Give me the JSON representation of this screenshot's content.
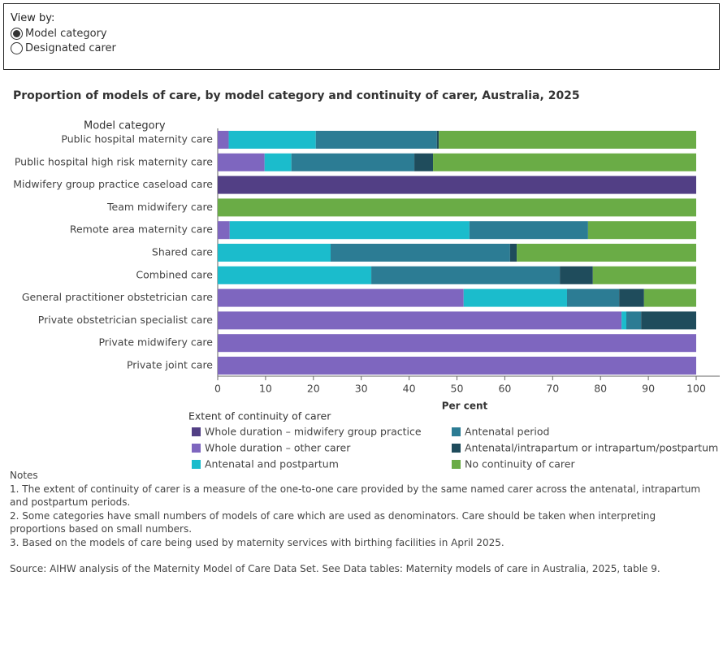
{
  "view_control": {
    "label": "View by:",
    "options": [
      {
        "label": "Model category",
        "selected": true
      },
      {
        "label": "Designated carer",
        "selected": false
      }
    ]
  },
  "chart_data": {
    "type": "bar",
    "orientation": "horizontal",
    "stacked": true,
    "title": "Proportion of models of care, by model category and continuity of carer, Australia, 2025",
    "y_axis_label": "Model category",
    "x_axis_label": "Per cent",
    "legend_title": "Extent of continuity of carer",
    "categories": [
      "Public hospital maternity care",
      "Public hospital high risk maternity care",
      "Midwifery group practice caseload care",
      "Team midwifery care",
      "Remote area maternity care",
      "Shared care",
      "Combined care",
      "General practitioner obstetrician care",
      "Private obstetrician specialist care",
      "Private midwifery care",
      "Private joint care"
    ],
    "series": [
      {
        "name": "Whole duration – midwifery group practice",
        "color": "#523f85",
        "values": [
          0,
          0,
          100,
          0,
          0,
          0,
          0,
          0,
          0,
          0,
          0
        ]
      },
      {
        "name": "Whole duration – other carer",
        "color": "#7e66bf",
        "values": [
          2.3,
          9.8,
          0,
          0,
          2.5,
          0,
          0,
          51.4,
          84.4,
          100,
          100
        ]
      },
      {
        "name": "Antenatal and postpartum",
        "color": "#1bbccc",
        "values": [
          18.2,
          5.6,
          0,
          0,
          50.1,
          23.6,
          32.1,
          21.6,
          1.0,
          0,
          0
        ]
      },
      {
        "name": "Antenatal period",
        "color": "#2c7c94",
        "values": [
          25.3,
          25.7,
          0,
          0,
          24.8,
          37.5,
          39.4,
          10.9,
          3.1,
          0,
          0
        ]
      },
      {
        "name": "Antenatal/intrapartum or intrapartum/postpartum",
        "color": "#1f4c5c",
        "values": [
          0.4,
          3.9,
          0,
          0,
          0,
          1.4,
          6.9,
          5.2,
          11.5,
          0,
          0
        ]
      },
      {
        "name": "No continuity of carer",
        "color": "#6aac46",
        "values": [
          53.8,
          55.0,
          0,
          100,
          22.6,
          37.5,
          21.6,
          10.9,
          0,
          0,
          0
        ]
      }
    ],
    "xlim": [
      0,
      100
    ],
    "xticks": [
      0,
      10,
      20,
      30,
      40,
      50,
      60,
      70,
      80,
      90,
      100
    ],
    "grid": false
  },
  "notes": {
    "heading": "Notes",
    "items": [
      "1. The extent of continuity of carer is a measure of the one-to-one care provided by the same named carer across the antenatal, intrapartum and postpartum periods.",
      "2. Some categories have small numbers of models of care which are used as denominators. Care should be taken when interpreting proportions based on small numbers.",
      "3. Based on the models of care being used by maternity services with birthing facilities in April 2025."
    ]
  },
  "source": "Source: AIHW analysis of the Maternity Model of Care Data Set. See Data tables: Maternity models of care in Australia, 2025, table 9."
}
